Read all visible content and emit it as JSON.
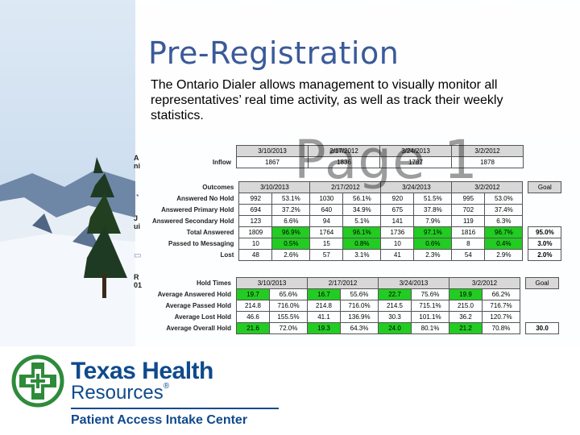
{
  "slide": {
    "title": "Pre-Registration",
    "description": "The Ontario Dialer allows management to visually monitor all representatives’ real time activity, as well as track their weekly statistics.",
    "watermark": "Page 1",
    "side_labels": [
      "A",
      "ni",
      "J",
      "ui",
      "R",
      "01"
    ]
  },
  "inflow": {
    "label": "Inflow",
    "dates": [
      "3/10/2013",
      "2/17/2012",
      "3/24/2013",
      "3/2/2012"
    ],
    "values": [
      "1867",
      "1836",
      "1787",
      "1878"
    ]
  },
  "outcomes": {
    "section_label": "Outcomes",
    "dates": [
      "3/10/2013",
      "2/17/2012",
      "3/24/2013",
      "3/2/2012"
    ],
    "goal_header": "Goal",
    "rows": [
      {
        "label": "Answered No Hold",
        "cells": [
          "992",
          "53.1%",
          "1030",
          "56.1%",
          "920",
          "51.5%",
          "995",
          "53.0%"
        ],
        "green": [],
        "goal": ""
      },
      {
        "label": "Answered Primary Hold",
        "cells": [
          "694",
          "37.2%",
          "640",
          "34.9%",
          "675",
          "37.8%",
          "702",
          "37.4%"
        ],
        "green": [],
        "goal": ""
      },
      {
        "label": "Answered Secondary Hold",
        "cells": [
          "123",
          "6.6%",
          "94",
          "5.1%",
          "141",
          "7.9%",
          "119",
          "6.3%"
        ],
        "green": [],
        "goal": ""
      },
      {
        "label": "Total Answered",
        "cells": [
          "1809",
          "96.9%",
          "1764",
          "96.1%",
          "1736",
          "97.1%",
          "1816",
          "96.7%"
        ],
        "green": [
          1,
          3,
          5,
          7
        ],
        "goal": "95.0%"
      },
      {
        "label": "Passed to Messaging",
        "cells": [
          "10",
          "0.5%",
          "15",
          "0.8%",
          "10",
          "0.6%",
          "8",
          "0.4%"
        ],
        "green": [
          1,
          3,
          5,
          7
        ],
        "goal": "3.0%"
      },
      {
        "label": "Lost",
        "cells": [
          "48",
          "2.6%",
          "57",
          "3.1%",
          "41",
          "2.3%",
          "54",
          "2.9%"
        ],
        "green": [],
        "goal": "2.0%"
      }
    ]
  },
  "hold_times": {
    "section_label": "Hold Times",
    "dates": [
      "3/10/2013",
      "2/17/2012",
      "3/24/2013",
      "3/2/2012"
    ],
    "goal_header": "Goal",
    "rows": [
      {
        "label": "Average Answered Hold",
        "cells": [
          "19.7",
          "65.6%",
          "16.7",
          "55.6%",
          "22.7",
          "75.6%",
          "19.9",
          "66.2%"
        ],
        "green": [
          0,
          2,
          4,
          6
        ],
        "goal": ""
      },
      {
        "label": "Average Passed Hold",
        "cells": [
          "214.8",
          "716.0%",
          "214.8",
          "716.0%",
          "214.5",
          "715.1%",
          "215.0",
          "716.7%"
        ],
        "green": [],
        "goal": ""
      },
      {
        "label": "Average Lost Hold",
        "cells": [
          "46.6",
          "155.5%",
          "41.1",
          "136.9%",
          "30.3",
          "101.1%",
          "36.2",
          "120.7%"
        ],
        "green": [],
        "goal": ""
      },
      {
        "label": "Average Overall Hold",
        "cells": [
          "21.6",
          "72.0%",
          "19.3",
          "64.3%",
          "24.0",
          "80.1%",
          "21.2",
          "70.8%"
        ],
        "green": [
          0,
          2,
          4,
          6
        ],
        "goal": "30.0"
      }
    ]
  },
  "branding": {
    "name_line1": "Texas Health",
    "name_line2": "Resources",
    "registered": "®",
    "center_name": "Patient Access Intake Center",
    "logo_icon": "texas-health-cross-logo",
    "brand_color": "#0f4a8c",
    "logo_green": "#2e8b3a"
  }
}
